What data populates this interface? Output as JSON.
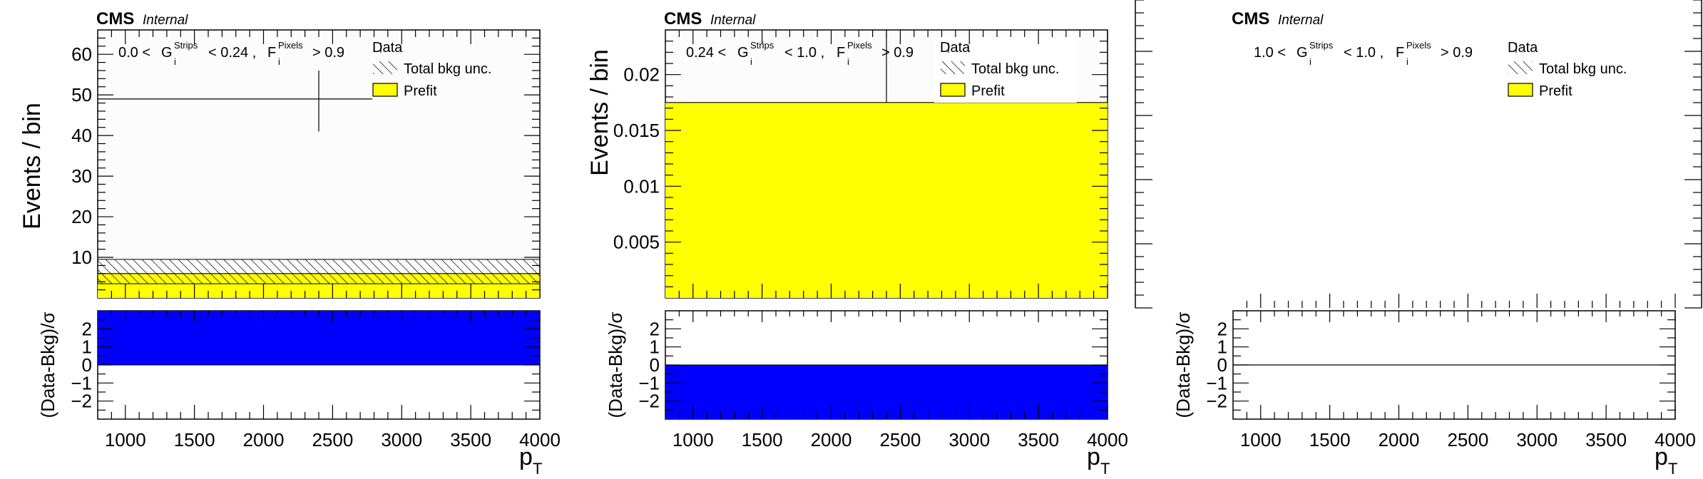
{
  "colors": {
    "prefit": "#ffff00",
    "residual": "#0000ff",
    "frame": "#000000",
    "background": "#ffffff",
    "panel_background": "#fcfcfc"
  },
  "chart_data": [
    {
      "type": "bar",
      "header": {
        "experiment": "CMS",
        "status": "Internal"
      },
      "region": {
        "g_lo": "0.0 <",
        "g": "G",
        "g_sub": "i",
        "g_sup": "Strips",
        "g_hi": "< 0.24 ,",
        "f": "F",
        "f_sub": "i",
        "f_sup": "Pixels",
        "f_hi": "> 0.9"
      },
      "legend": [
        "Data",
        "Total bkg unc.",
        "Prefit"
      ],
      "ylabel": "Events / bin",
      "ratio_ylabel": "(Data-Bkg)/σ",
      "xlabel": "p",
      "xlabel_sub": "T",
      "xlim": [
        800,
        4000
      ],
      "ylim": [
        0,
        66
      ],
      "yticks": [
        10,
        20,
        30,
        40,
        50,
        60
      ],
      "ytick_labels": [
        "10",
        "20",
        "30",
        "40",
        "50",
        "60"
      ],
      "xticks": [
        1000,
        1500,
        2000,
        2500,
        3000,
        3500,
        4000
      ],
      "xtick_labels": [
        "1000",
        "1500",
        "2000",
        "2500",
        "3000",
        "3500",
        "4000"
      ],
      "ratio_ylim": [
        -3,
        3
      ],
      "ratio_yticks": [
        -2,
        -1,
        0,
        1,
        2
      ],
      "ratio_ytick_labels": [
        "−2",
        "−1",
        "0",
        "1",
        "2"
      ],
      "data_point": {
        "x": 2400,
        "y": 49,
        "x_range": [
          800,
          4000
        ],
        "y_err": [
          41,
          56
        ]
      },
      "prefit_value": 6.0,
      "bkg_unc_range": [
        3.5,
        9.5
      ],
      "ratio_value": 3
    },
    {
      "type": "bar",
      "header": {
        "experiment": "CMS",
        "status": "Internal"
      },
      "region": {
        "g_lo": "0.24 <",
        "g": "G",
        "g_sub": "i",
        "g_sup": "Strips",
        "g_hi": "< 1.0 ,",
        "f": "F",
        "f_sub": "i",
        "f_sup": "Pixels",
        "f_hi": "> 0.9"
      },
      "legend": [
        "Data",
        "Total bkg unc.",
        "Prefit"
      ],
      "ylabel": "Events / bin",
      "ratio_ylabel": "(Data-Bkg)/σ",
      "xlabel": "p",
      "xlabel_sub": "T",
      "xlim": [
        800,
        4000
      ],
      "ylim": [
        0,
        0.024
      ],
      "yticks": [
        0.005,
        0.01,
        0.015,
        0.02
      ],
      "ytick_labels": [
        "0.005",
        "0.01",
        "0.015",
        "0.02"
      ],
      "xticks": [
        1000,
        1500,
        2000,
        2500,
        3000,
        3500,
        4000
      ],
      "xtick_labels": [
        "1000",
        "1500",
        "2000",
        "2500",
        "3000",
        "3500",
        "4000"
      ],
      "ratio_ylim": [
        -3,
        3
      ],
      "ratio_yticks": [
        -2,
        -1,
        0,
        1,
        2
      ],
      "ratio_ytick_labels": [
        "−2",
        "−1",
        "0",
        "1",
        "2"
      ],
      "prefit_value": 0.0175,
      "ratio_value": -3
    },
    {
      "type": "bar",
      "header": {
        "experiment": "CMS",
        "status": "Internal"
      },
      "region": {
        "g_lo": "1.0 <",
        "g": "G",
        "g_sub": "i",
        "g_sup": "Strips",
        "g_hi": "< 1.0 ,",
        "f": "F",
        "f_sub": "i",
        "f_sup": "Pixels",
        "f_hi": "> 0.9"
      },
      "legend": [
        "Data",
        "Total bkg unc.",
        "Prefit"
      ],
      "ylabel": "",
      "ratio_ylabel": "(Data-Bkg)/σ",
      "xlabel": "p",
      "xlabel_sub": "T",
      "xlim": [
        800,
        4000
      ],
      "ylim": [
        0,
        1
      ],
      "xticks": [
        1000,
        1500,
        2000,
        2500,
        3000,
        3500,
        4000
      ],
      "xtick_labels": [
        "1000",
        "1500",
        "2000",
        "2500",
        "3000",
        "3500",
        "4000"
      ],
      "ratio_ylim": [
        -3,
        3
      ],
      "ratio_yticks": [
        -2,
        -1,
        0,
        1,
        2
      ],
      "ratio_ytick_labels": [
        "−2",
        "−1",
        "0",
        "1",
        "2"
      ],
      "ratio_value": 0
    }
  ]
}
